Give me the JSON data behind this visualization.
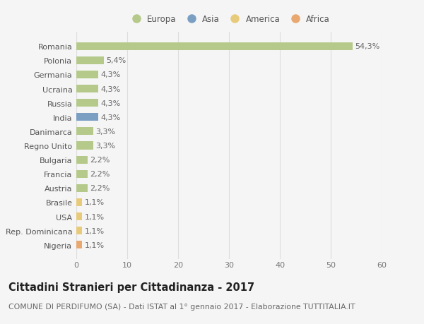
{
  "categories": [
    "Romania",
    "Polonia",
    "Germania",
    "Ucraina",
    "Russia",
    "India",
    "Danimarca",
    "Regno Unito",
    "Bulgaria",
    "Francia",
    "Austria",
    "Brasile",
    "USA",
    "Rep. Dominicana",
    "Nigeria"
  ],
  "values": [
    54.3,
    5.4,
    4.3,
    4.3,
    4.3,
    4.3,
    3.3,
    3.3,
    2.2,
    2.2,
    2.2,
    1.1,
    1.1,
    1.1,
    1.1
  ],
  "labels": [
    "54,3%",
    "5,4%",
    "4,3%",
    "4,3%",
    "4,3%",
    "4,3%",
    "3,3%",
    "3,3%",
    "2,2%",
    "2,2%",
    "2,2%",
    "1,1%",
    "1,1%",
    "1,1%",
    "1,1%"
  ],
  "bar_colors": [
    "#b5c98a",
    "#b5c98a",
    "#b5c98a",
    "#b5c98a",
    "#b5c98a",
    "#7a9fc2",
    "#b5c98a",
    "#b5c98a",
    "#b5c98a",
    "#b5c98a",
    "#b5c98a",
    "#e8cb7a",
    "#e8cb7a",
    "#e8cb7a",
    "#e8a870"
  ],
  "continent_colors": {
    "Europa": "#b5c98a",
    "Asia": "#7a9fc2",
    "America": "#e8cb7a",
    "Africa": "#e8a870"
  },
  "xlim": [
    0,
    60
  ],
  "xticks": [
    0,
    10,
    20,
    30,
    40,
    50,
    60
  ],
  "title": "Cittadini Stranieri per Cittadinanza - 2017",
  "subtitle": "COMUNE DI PERDIFUMO (SA) - Dati ISTAT al 1° gennaio 2017 - Elaborazione TUTTITALIA.IT",
  "background_color": "#f5f5f5",
  "grid_color": "#dddddd",
  "bar_height": 0.55,
  "label_fontsize": 8.0,
  "title_fontsize": 10.5,
  "subtitle_fontsize": 7.8,
  "tick_fontsize": 8.0,
  "legend_fontsize": 8.5
}
